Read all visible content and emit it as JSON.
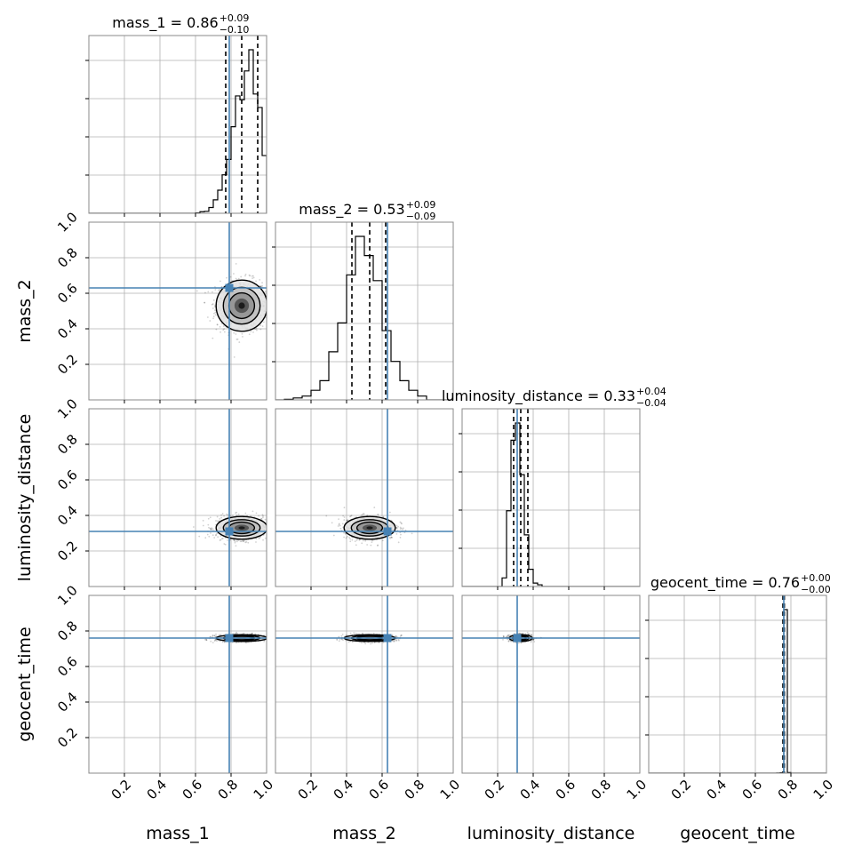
{
  "chart_data": {
    "type": "corner",
    "parameters": [
      "mass_1",
      "mass_2",
      "luminosity_distance",
      "geocent_time"
    ],
    "axis_labels": [
      "mass_1",
      "mass_2",
      "luminosity_distance",
      "geocent_time"
    ],
    "ticks": [
      0.2,
      0.4,
      0.6,
      0.8,
      1.0
    ],
    "tick_labels": [
      "0.2",
      "0.4",
      "0.6",
      "0.8",
      "1.0"
    ],
    "range": [
      0,
      1
    ],
    "grid": true,
    "truths": [
      0.79,
      0.63,
      0.31,
      0.76
    ],
    "truth_color": "#4682b4",
    "hist_color": "#000000",
    "titles": [
      {
        "name": "mass_1",
        "median": "0.86",
        "plus": "+0.09",
        "minus": "−0.10"
      },
      {
        "name": "mass_2",
        "median": "0.53",
        "plus": "+0.09",
        "minus": "−0.09"
      },
      {
        "name": "luminosity_distance",
        "median": "0.33",
        "plus": "+0.04",
        "minus": "−0.04"
      },
      {
        "name": "geocent_time",
        "median": "0.76",
        "plus": "+0.00",
        "minus": "−0.00"
      }
    ],
    "quantiles": [
      [
        0.77,
        0.86,
        0.95
      ],
      [
        0.43,
        0.53,
        0.62
      ],
      [
        0.29,
        0.33,
        0.37
      ],
      [
        0.755,
        0.76,
        0.763
      ]
    ],
    "histograms": [
      {
        "edges": [
          0.5,
          0.525,
          0.55,
          0.575,
          0.6,
          0.625,
          0.65,
          0.675,
          0.7,
          0.725,
          0.75,
          0.775,
          0.8,
          0.825,
          0.85,
          0.875,
          0.9,
          0.925,
          0.95,
          0.975,
          1.0
        ],
        "counts": [
          0,
          0,
          0,
          0,
          0.002,
          0.008,
          0.01,
          0.03,
          0.07,
          0.12,
          0.2,
          0.28,
          0.45,
          0.61,
          0.59,
          0.74,
          0.85,
          0.62,
          0.55,
          0.3
        ]
      },
      {
        "edges": [
          0.05,
          0.1,
          0.15,
          0.2,
          0.25,
          0.3,
          0.35,
          0.4,
          0.45,
          0.5,
          0.55,
          0.6,
          0.65,
          0.7,
          0.75,
          0.8,
          0.85
        ],
        "counts": [
          0.003,
          0.01,
          0.02,
          0.05,
          0.1,
          0.25,
          0.4,
          0.65,
          0.85,
          0.75,
          0.62,
          0.36,
          0.2,
          0.1,
          0.05,
          0.02
        ]
      },
      {
        "edges": [
          0.2,
          0.225,
          0.25,
          0.275,
          0.3,
          0.325,
          0.35,
          0.375,
          0.4,
          0.425,
          0.45,
          0.475,
          0.5
        ],
        "counts": [
          0,
          0.05,
          0.44,
          0.85,
          0.95,
          0.65,
          0.3,
          0.1,
          0.02,
          0.01,
          0,
          0
        ]
      },
      {
        "edges": [
          0.7,
          0.72,
          0.74,
          0.76,
          0.78,
          0.8
        ],
        "counts": [
          0,
          0.001,
          0.002,
          0.9,
          0.003
        ]
      }
    ],
    "pair_means": {
      "mass_1": 0.86,
      "mass_2": 0.53,
      "luminosity_distance": 0.33,
      "geocent_time": 0.76
    },
    "pair_sigmas": {
      "mass_1": 0.09,
      "mass_2": 0.09,
      "luminosity_distance": 0.04,
      "geocent_time": 0.012
    }
  }
}
